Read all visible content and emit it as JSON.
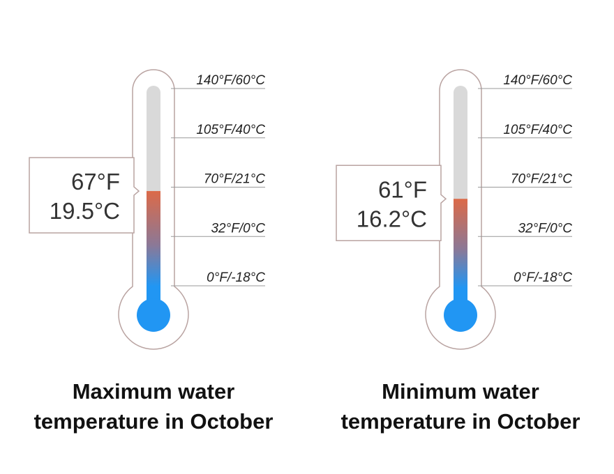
{
  "chart_data": [
    {
      "type": "thermometer",
      "title": "Maximum water temperature in October",
      "values": [
        67
      ],
      "value_labels": [
        "67°F"
      ],
      "secondary_labels": [
        "19.5°C"
      ],
      "ylim": [
        0,
        140
      ],
      "yticks": [
        {
          "value": 140,
          "label": "140°F/60°C"
        },
        {
          "value": 105,
          "label": "105°F/40°C"
        },
        {
          "value": 70,
          "label": "70°F/21°C"
        },
        {
          "value": 32,
          "label": "32°F/0°C"
        },
        {
          "value": 0,
          "label": "0°F/-18°C"
        }
      ]
    },
    {
      "type": "thermometer",
      "title": "Minimum water temperature in October",
      "values": [
        61
      ],
      "value_labels": [
        "61°F"
      ],
      "secondary_labels": [
        "16.2°C"
      ],
      "ylim": [
        0,
        140
      ],
      "yticks": [
        {
          "value": 140,
          "label": "140°F/60°C"
        },
        {
          "value": 105,
          "label": "105°F/40°C"
        },
        {
          "value": 70,
          "label": "70°F/21°C"
        },
        {
          "value": 32,
          "label": "32°F/0°C"
        },
        {
          "value": 0,
          "label": "0°F/-18°C"
        }
      ]
    }
  ]
}
